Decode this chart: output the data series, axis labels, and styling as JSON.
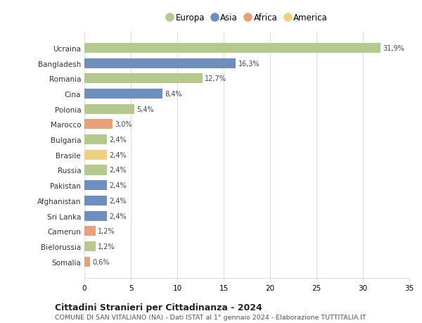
{
  "categories": [
    "Ucraina",
    "Bangladesh",
    "Romania",
    "Cina",
    "Polonia",
    "Marocco",
    "Bulgaria",
    "Brasile",
    "Russia",
    "Pakistan",
    "Afghanistan",
    "Sri Lanka",
    "Camerun",
    "Bielorussia",
    "Somalia"
  ],
  "values": [
    31.9,
    16.3,
    12.7,
    8.4,
    5.4,
    3.0,
    2.4,
    2.4,
    2.4,
    2.4,
    2.4,
    2.4,
    1.2,
    1.2,
    0.6
  ],
  "labels": [
    "31,9%",
    "16,3%",
    "12,7%",
    "8,4%",
    "5,4%",
    "3,0%",
    "2,4%",
    "2,4%",
    "2,4%",
    "2,4%",
    "2,4%",
    "2,4%",
    "1,2%",
    "1,2%",
    "0,6%"
  ],
  "colors": [
    "#b5c98e",
    "#6d8ebf",
    "#b5c98e",
    "#6d8ebf",
    "#b5c98e",
    "#e8a07a",
    "#b5c98e",
    "#f0d080",
    "#b5c98e",
    "#6d8ebf",
    "#6d8ebf",
    "#6d8ebf",
    "#e8a07a",
    "#b5c98e",
    "#e8a07a"
  ],
  "legend_labels": [
    "Europa",
    "Asia",
    "Africa",
    "America"
  ],
  "legend_colors": [
    "#b5c98e",
    "#6d8ebf",
    "#e8a07a",
    "#f0d080"
  ],
  "title": "Cittadini Stranieri per Cittadinanza - 2024",
  "subtitle": "COMUNE DI SAN VITALIANO (NA) - Dati ISTAT al 1° gennaio 2024 - Elaborazione TUTTITALIA.IT",
  "xlim": [
    0,
    35
  ],
  "xticks": [
    0,
    5,
    10,
    15,
    20,
    25,
    30,
    35
  ],
  "background_color": "#ffffff",
  "grid_color": "#dddddd",
  "bar_height": 0.65
}
